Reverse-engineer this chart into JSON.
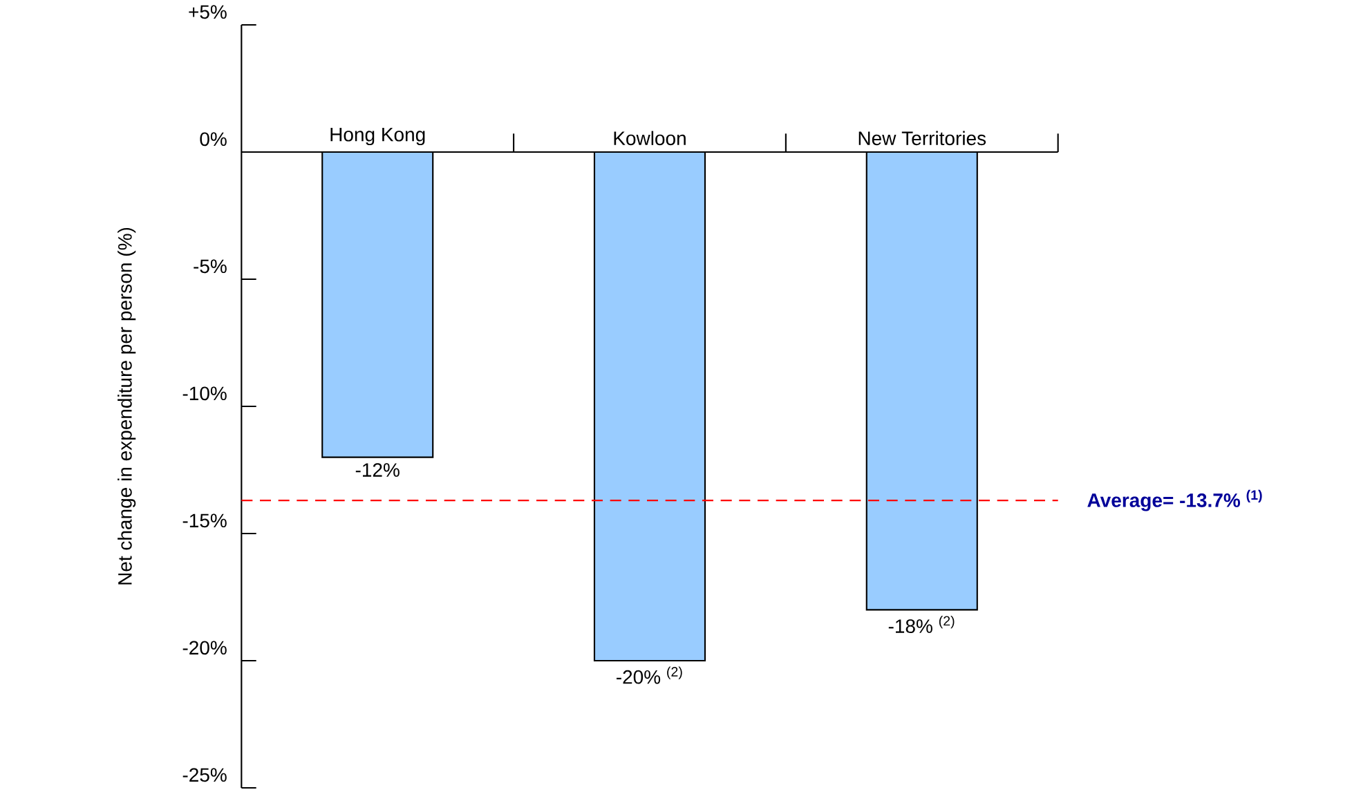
{
  "chart_data": {
    "type": "bar",
    "ylabel": "Net change in expenditure per person (%)",
    "categories": [
      "Hong Kong",
      "Kowloon",
      "New Territories"
    ],
    "values": [
      -12,
      -20,
      -18
    ],
    "color": "#99ccff",
    "value_labels": [
      "-12%",
      "-20% $^{(2)}$",
      "-18% $^{(2)}$"
    ],
    "ylim": [
      -25,
      5
    ],
    "yticks": [
      {
        "value": 5,
        "label": "+5%"
      },
      {
        "value": 0,
        "label": "0%"
      },
      {
        "value": -5,
        "label": "-5%"
      },
      {
        "value": -10,
        "label": "-10%"
      },
      {
        "value": -15,
        "label": "-15%"
      },
      {
        "value": -20,
        "label": "-20%"
      },
      {
        "value": -25,
        "label": "-25%"
      }
    ],
    "ref_lines": [
      {
        "axis": "y",
        "value": -13.7,
        "label": "Average= -13.7% $^{(1)}$",
        "color": "#ff0000",
        "line_style": "dashed"
      }
    ]
  }
}
